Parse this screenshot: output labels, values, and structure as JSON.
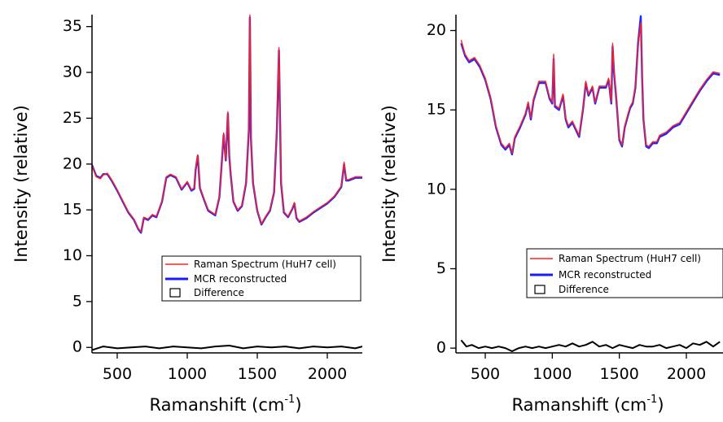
{
  "chart_data": [
    {
      "type": "line",
      "xlabel": "Ramanshift (cm",
      "xlabel_sup": "-1",
      "xlabel_end": ")",
      "ylabel": "Intensity (relative)",
      "xlim": [
        320,
        2250
      ],
      "ylim": [
        -0.6,
        36.3
      ],
      "xticks": [
        500,
        1000,
        1500,
        2000
      ],
      "yticks": [
        0,
        5,
        10,
        15,
        20,
        25,
        30,
        35
      ],
      "grid": false,
      "legend_position": "lower-right",
      "legend": [
        {
          "name": "Raman Spectrum (HuH7 cell)",
          "color": "#ff2020",
          "style": "line"
        },
        {
          "name": "MCR reconstructed",
          "color": "#1a1aff",
          "style": "line"
        },
        {
          "name": "Difference",
          "color": "#000000",
          "style": "box"
        }
      ],
      "series": [
        {
          "name": "Raman Spectrum (HuH7 cell)",
          "color": "#ff2020",
          "x": [
            320,
            350,
            380,
            400,
            430,
            460,
            500,
            540,
            580,
            620,
            650,
            670,
            690,
            720,
            750,
            780,
            820,
            850,
            880,
            920,
            960,
            1000,
            1030,
            1050,
            1060,
            1075,
            1090,
            1120,
            1150,
            1200,
            1230,
            1260,
            1275,
            1290,
            1300,
            1310,
            1330,
            1360,
            1390,
            1420,
            1440,
            1447,
            1455,
            1470,
            1500,
            1530,
            1560,
            1590,
            1620,
            1640,
            1655,
            1670,
            1690,
            1720,
            1750,
            1765,
            1780,
            1800,
            1850,
            1900,
            1950,
            2000,
            2050,
            2100,
            2120,
            2135,
            2150,
            2200,
            2250
          ],
          "y": [
            19.8,
            18.6,
            18.4,
            18.8,
            19.0,
            18.3,
            17.2,
            16.0,
            14.8,
            14.0,
            13.0,
            12.6,
            14.2,
            14.0,
            14.5,
            14.3,
            16.0,
            18.6,
            18.9,
            18.6,
            17.3,
            18.1,
            17.2,
            17.4,
            19.5,
            21.0,
            17.5,
            16.2,
            15.0,
            14.5,
            16.5,
            23.4,
            20.5,
            25.7,
            21.0,
            19.0,
            16.0,
            15.0,
            15.5,
            18.0,
            24.0,
            36.3,
            23.0,
            18.0,
            15.0,
            13.5,
            14.3,
            15.0,
            17.0,
            24.0,
            32.7,
            18.0,
            14.8,
            14.3,
            15.2,
            15.8,
            14.2,
            13.8,
            14.2,
            14.8,
            15.3,
            15.8,
            16.5,
            17.6,
            20.2,
            18.3,
            18.3,
            18.6,
            18.6
          ]
        },
        {
          "name": "MCR reconstructed",
          "color": "#1a1aff",
          "x": [
            320,
            350,
            380,
            400,
            430,
            460,
            500,
            540,
            580,
            620,
            650,
            670,
            690,
            720,
            750,
            780,
            820,
            850,
            880,
            920,
            960,
            1000,
            1030,
            1050,
            1060,
            1075,
            1090,
            1120,
            1150,
            1200,
            1230,
            1260,
            1275,
            1290,
            1300,
            1310,
            1330,
            1360,
            1390,
            1420,
            1440,
            1447,
            1455,
            1470,
            1500,
            1530,
            1560,
            1590,
            1620,
            1640,
            1655,
            1670,
            1690,
            1720,
            1750,
            1765,
            1780,
            1800,
            1850,
            1900,
            1950,
            2000,
            2050,
            2100,
            2120,
            2135,
            2150,
            2200,
            2250
          ],
          "y": [
            19.9,
            18.7,
            18.5,
            18.9,
            18.9,
            18.2,
            17.1,
            15.9,
            14.7,
            13.9,
            12.9,
            12.5,
            14.1,
            13.9,
            14.4,
            14.2,
            15.9,
            18.5,
            18.8,
            18.5,
            17.2,
            18.0,
            17.1,
            17.3,
            19.4,
            20.9,
            17.4,
            16.1,
            14.9,
            14.4,
            16.4,
            23.2,
            20.4,
            25.5,
            20.9,
            18.9,
            15.9,
            14.9,
            15.4,
            17.9,
            23.8,
            36.0,
            22.8,
            17.9,
            14.9,
            13.4,
            14.2,
            14.9,
            16.9,
            23.8,
            32.4,
            17.9,
            14.7,
            14.2,
            15.1,
            15.7,
            14.1,
            13.7,
            14.1,
            14.7,
            15.2,
            15.7,
            16.4,
            17.5,
            20.0,
            18.2,
            18.2,
            18.5,
            18.5
          ]
        },
        {
          "name": "Difference",
          "color": "#000000",
          "x": [
            320,
            400,
            500,
            600,
            700,
            800,
            900,
            1000,
            1100,
            1200,
            1300,
            1400,
            1500,
            1600,
            1700,
            1800,
            1900,
            2000,
            2100,
            2200,
            2250
          ],
          "y": [
            -0.3,
            0.1,
            -0.1,
            0.0,
            0.1,
            -0.1,
            0.1,
            0.0,
            -0.1,
            0.1,
            0.2,
            -0.1,
            0.1,
            0.0,
            0.1,
            -0.1,
            0.1,
            0.0,
            0.1,
            -0.1,
            0.1
          ]
        }
      ]
    },
    {
      "type": "line",
      "xlabel": "Ramanshift (cm",
      "xlabel_sup": "-1",
      "xlabel_end": ")",
      "ylabel": "Intensity (relative)",
      "xlim": [
        320,
        2250
      ],
      "ylim": [
        -0.3,
        21.0
      ],
      "xticks": [
        500,
        1000,
        1500,
        2000
      ],
      "yticks": [
        0,
        5,
        10,
        15,
        20
      ],
      "grid": false,
      "legend_position": "lower-right",
      "legend": [
        {
          "name": "Raman Spectrum (HuH7 cell)",
          "color": "#ff2020",
          "style": "line"
        },
        {
          "name": "MCR reconstructed",
          "color": "#1a1aff",
          "style": "line"
        },
        {
          "name": "Difference",
          "color": "#000000",
          "style": "box"
        }
      ],
      "series": [
        {
          "name": "Raman Spectrum (HuH7 cell)",
          "color": "#ff2020",
          "x": [
            320,
            350,
            380,
            420,
            460,
            500,
            540,
            580,
            620,
            650,
            680,
            700,
            720,
            760,
            800,
            820,
            840,
            860,
            900,
            950,
            980,
            1000,
            1010,
            1020,
            1050,
            1080,
            1100,
            1120,
            1150,
            1200,
            1230,
            1250,
            1270,
            1300,
            1320,
            1350,
            1400,
            1420,
            1440,
            1450,
            1460,
            1480,
            1500,
            1520,
            1540,
            1560,
            1580,
            1600,
            1620,
            1640,
            1660,
            1670,
            1680,
            1700,
            1720,
            1750,
            1780,
            1800,
            1850,
            1900,
            1950,
            2000,
            2050,
            2100,
            2150,
            2200,
            2250
          ],
          "y": [
            19.4,
            18.5,
            18.1,
            18.3,
            17.8,
            17.0,
            15.8,
            14.0,
            12.9,
            12.6,
            12.9,
            12.3,
            13.3,
            14.0,
            14.8,
            15.5,
            14.5,
            15.7,
            16.8,
            16.8,
            15.8,
            15.5,
            18.5,
            15.3,
            15.1,
            16.0,
            14.5,
            14.0,
            14.3,
            13.4,
            15.2,
            16.8,
            16.0,
            16.5,
            15.5,
            16.5,
            16.5,
            17.0,
            15.5,
            19.2,
            17.5,
            15.5,
            13.2,
            12.8,
            14.0,
            14.6,
            15.2,
            15.5,
            16.5,
            19.0,
            20.5,
            17.0,
            14.5,
            12.8,
            12.7,
            13.0,
            13.0,
            13.4,
            13.6,
            14.0,
            14.2,
            14.9,
            15.6,
            16.3,
            16.9,
            17.4,
            17.3
          ]
        },
        {
          "name": "MCR reconstructed",
          "color": "#1a1aff",
          "x": [
            320,
            350,
            380,
            420,
            460,
            500,
            540,
            580,
            620,
            650,
            680,
            700,
            720,
            760,
            800,
            820,
            840,
            860,
            900,
            950,
            980,
            1000,
            1010,
            1020,
            1050,
            1080,
            1100,
            1120,
            1150,
            1200,
            1230,
            1250,
            1270,
            1300,
            1320,
            1350,
            1400,
            1420,
            1440,
            1450,
            1460,
            1480,
            1500,
            1520,
            1540,
            1560,
            1580,
            1600,
            1620,
            1640,
            1660,
            1670,
            1680,
            1700,
            1720,
            1750,
            1780,
            1800,
            1850,
            1900,
            1950,
            2000,
            2050,
            2100,
            2150,
            2200,
            2250
          ],
          "y": [
            19.2,
            18.4,
            18.0,
            18.2,
            17.7,
            16.9,
            15.7,
            13.9,
            12.8,
            12.5,
            12.8,
            12.2,
            13.2,
            13.9,
            14.7,
            15.4,
            14.4,
            15.6,
            16.7,
            16.7,
            15.7,
            15.4,
            18.2,
            15.2,
            15.0,
            15.9,
            14.4,
            13.9,
            14.2,
            13.3,
            15.1,
            16.7,
            15.9,
            16.4,
            15.4,
            16.4,
            16.4,
            16.9,
            15.4,
            19.0,
            17.4,
            15.4,
            13.1,
            12.7,
            13.9,
            14.5,
            15.1,
            15.4,
            16.4,
            19.2,
            20.9,
            17.0,
            14.4,
            12.7,
            12.6,
            12.9,
            12.9,
            13.3,
            13.5,
            13.9,
            14.1,
            14.8,
            15.5,
            16.2,
            16.8,
            17.3,
            17.2
          ]
        },
        {
          "name": "Difference",
          "color": "#000000",
          "x": [
            320,
            360,
            400,
            450,
            500,
            550,
            600,
            650,
            700,
            750,
            800,
            850,
            900,
            950,
            1000,
            1050,
            1100,
            1150,
            1200,
            1250,
            1300,
            1350,
            1400,
            1450,
            1500,
            1550,
            1600,
            1650,
            1700,
            1750,
            1800,
            1850,
            1900,
            1950,
            2000,
            2050,
            2100,
            2150,
            2200,
            2250
          ],
          "y": [
            0.5,
            0.1,
            0.2,
            0.0,
            0.1,
            0.0,
            0.1,
            0.0,
            -0.2,
            0.0,
            0.1,
            0.0,
            0.1,
            0.0,
            0.1,
            0.2,
            0.1,
            0.3,
            0.1,
            0.2,
            0.4,
            0.1,
            0.2,
            0.0,
            0.2,
            0.1,
            0.0,
            0.2,
            0.1,
            0.1,
            0.2,
            0.0,
            0.1,
            0.2,
            0.0,
            0.3,
            0.2,
            0.4,
            0.1,
            0.4
          ]
        }
      ]
    }
  ]
}
